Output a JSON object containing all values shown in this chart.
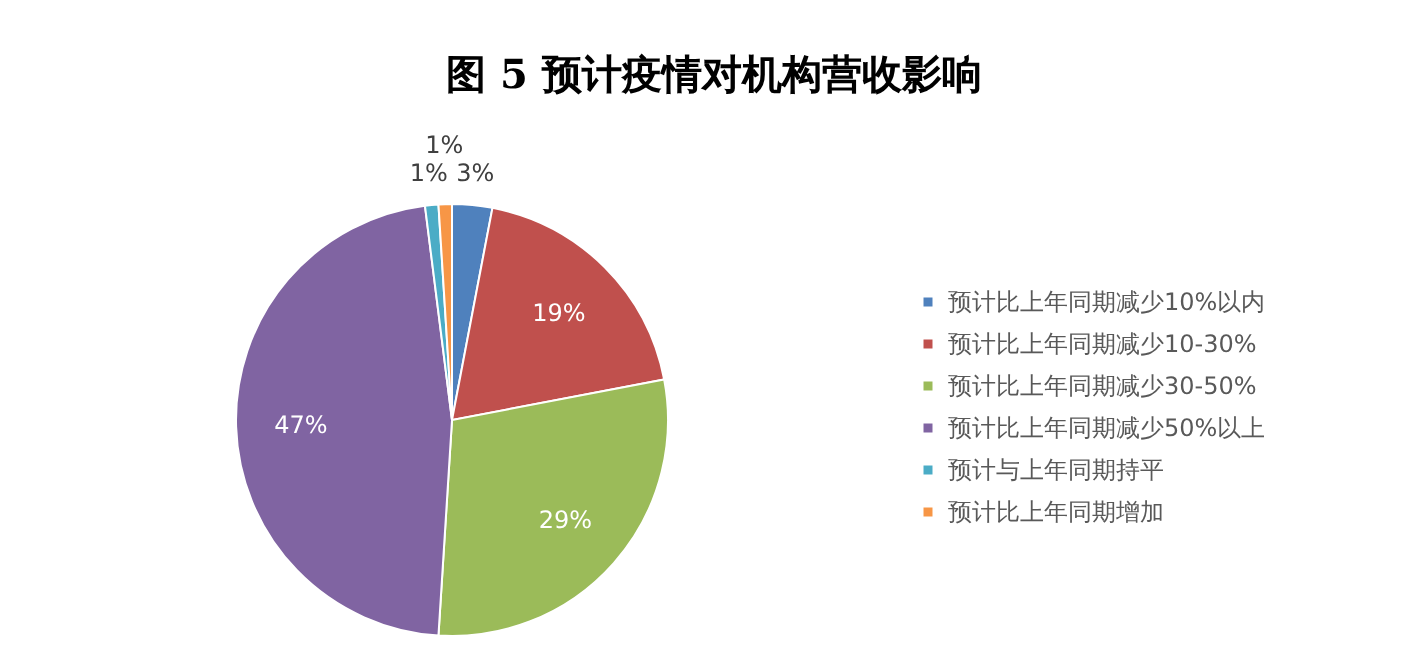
{
  "chart_data": {
    "type": "pie",
    "title": "图 5  预计疫情对机构营收影响",
    "categories": [
      "预计比上年同期减少10%以内",
      "预计比上年同期减少10-30%",
      "预计比上年同期减少30-50%",
      "预计比上年同期减少50%以上",
      "预计与上年同期持平",
      "预计比上年同期增加"
    ],
    "values": [
      3,
      19,
      29,
      47,
      1,
      1
    ],
    "value_labels": [
      "3%",
      "19%",
      "29%",
      "47%",
      "1%",
      "1%"
    ],
    "colors": [
      "#4f81bd",
      "#c0504d",
      "#9bbb59",
      "#8064a2",
      "#4bacc6",
      "#f79646"
    ],
    "legend": "right"
  }
}
